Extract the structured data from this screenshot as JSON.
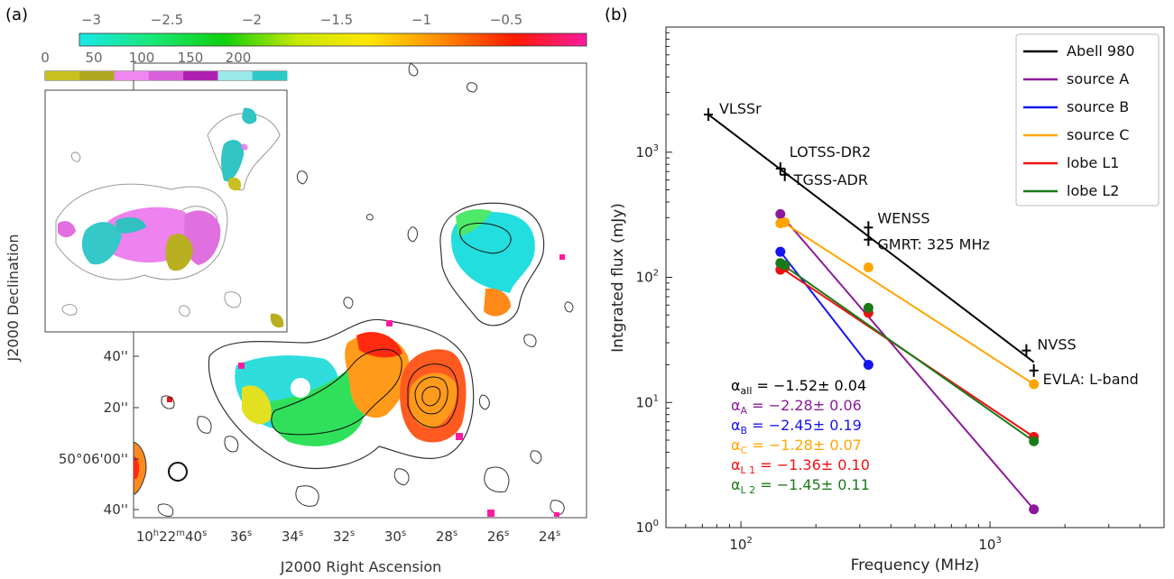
{
  "figure": {
    "panel_a_label": "(a)",
    "panel_b_label": "(b)"
  },
  "panel_a": {
    "xlabel": "J2000 Right Ascension",
    "ylabel": "J2000 Declination",
    "colorbar_ticks": [
      "−3",
      "−2.5",
      "−2",
      "−1.5",
      "−1",
      "−0.5"
    ],
    "colorbar_colors": [
      "#19e8e8",
      "#18e878",
      "#10d010",
      "#c8e800",
      "#ffe600",
      "#ff8a00",
      "#ff1a00",
      "#ff1aa0"
    ],
    "inset_colorbar_ticks": [
      "0",
      "50",
      "100",
      "150",
      "200"
    ],
    "inset_colorbar_colors": [
      "#c8c020",
      "#b0a820",
      "#ee88ee",
      "#d860d8",
      "#b020b0",
      "#9ae8e8",
      "#30c8c8"
    ],
    "ra_ticks": [
      {
        "main": "10",
        "sup1": "h",
        "mid": "22",
        "sup2": "m",
        "sec": "40",
        "sup3": "s"
      },
      {
        "sec": "36",
        "sup": "s"
      },
      {
        "sec": "34",
        "sup": "s"
      },
      {
        "sec": "32",
        "sup": "s"
      },
      {
        "sec": "30",
        "sup": "s"
      },
      {
        "sec": "28",
        "sup": "s"
      },
      {
        "sec": "26",
        "sup": "s"
      },
      {
        "sec": "24",
        "sup": "s"
      }
    ],
    "dec_ticks": [
      "40''",
      "20''",
      "50°06'00''",
      "40''"
    ]
  },
  "chart_data": {
    "type": "scatter",
    "xlabel": "Frequency (MHz)",
    "ylabel": "Intgrated flux (mJy)",
    "xscale": "log",
    "yscale": "log",
    "xlim": [
      50,
      5000
    ],
    "ylim": [
      1,
      10000
    ],
    "x_tick_labels": [
      "10",
      "10",
      "10"
    ],
    "x_tick_exponents": [
      "2",
      "3",
      ""
    ],
    "y_tick_labels": [
      "10",
      "10",
      "10",
      "10"
    ],
    "y_tick_exponents": [
      "0",
      "1",
      "2",
      "3"
    ],
    "legend_position": "top-right",
    "series": [
      {
        "name": "Abell 980",
        "color": "#000000",
        "marker": "cross",
        "points": [
          [
            74,
            2000
          ],
          [
            144,
            740
          ],
          [
            150,
            660
          ],
          [
            325,
            250
          ],
          [
            325,
            200
          ],
          [
            1400,
            26
          ],
          [
            1500,
            18
          ]
        ],
        "point_labels": [
          "VLSSr",
          "LOTSS-DR2",
          "TGSS-ADR",
          "WENSS",
          "GMRT: 325 MHz",
          "NVSS",
          "EVLA: L-band"
        ],
        "fit": [
          [
            74,
            2000
          ],
          [
            1500,
            21
          ]
        ]
      },
      {
        "name": "source A",
        "color": "#8b1a9a",
        "points": [
          [
            144,
            320
          ],
          [
            1500,
            1.4
          ]
        ],
        "fit": [
          [
            144,
            320
          ],
          [
            1500,
            1.4
          ]
        ]
      },
      {
        "name": "source B",
        "color": "#1515ee",
        "points": [
          [
            144,
            160
          ],
          [
            325,
            20
          ]
        ],
        "fit": [
          [
            144,
            160
          ],
          [
            325,
            20
          ]
        ]
      },
      {
        "name": "source C",
        "color": "#ffa500",
        "points": [
          [
            144,
            270
          ],
          [
            150,
            275
          ],
          [
            325,
            120
          ],
          [
            1500,
            14
          ]
        ],
        "fit": [
          [
            144,
            285
          ],
          [
            1500,
            14
          ]
        ]
      },
      {
        "name": "lobe L1",
        "color": "#ee1111",
        "points": [
          [
            144,
            115
          ],
          [
            150,
            120
          ],
          [
            325,
            52
          ],
          [
            1500,
            5.3
          ]
        ],
        "fit": [
          [
            144,
            120
          ],
          [
            1500,
            5.3
          ]
        ]
      },
      {
        "name": "lobe L2",
        "color": "#1a7a1a",
        "points": [
          [
            144,
            130
          ],
          [
            150,
            125
          ],
          [
            325,
            57
          ],
          [
            1500,
            4.9
          ]
        ],
        "fit": [
          [
            144,
            130
          ],
          [
            1500,
            4.9
          ]
        ]
      }
    ],
    "annotations": [
      {
        "sub": "all",
        "val": " = −1.52± 0.04",
        "color": "#000000"
      },
      {
        "sub": "A",
        "val": " = −2.28± 0.06",
        "color": "#8b1a9a"
      },
      {
        "sub": "B",
        "val": " = −2.45± 0.19",
        "color": "#1515ee"
      },
      {
        "sub": "C",
        "val": " = −1.28± 0.07",
        "color": "#ffa500"
      },
      {
        "sub": "L 1",
        "val": " = −1.36± 0.10",
        "color": "#ee1111"
      },
      {
        "sub": "L 2",
        "val": " = −1.45± 0.11",
        "color": "#1a7a1a"
      }
    ]
  }
}
